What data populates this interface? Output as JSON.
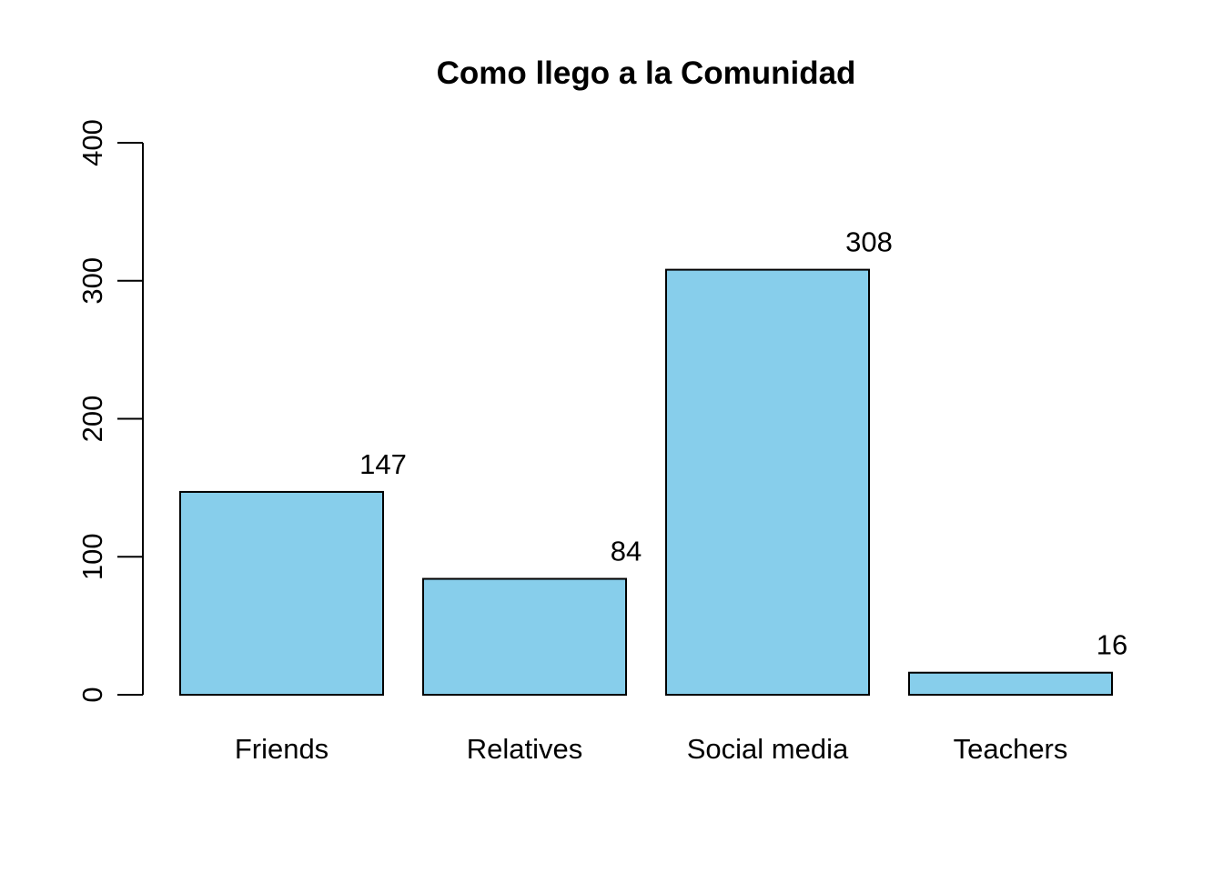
{
  "chart_data": {
    "type": "bar",
    "title": "Como llego a la Comunidad",
    "xlabel": "",
    "ylabel": "",
    "categories": [
      "Friends",
      "Relatives",
      "Social media",
      "Teachers"
    ],
    "values": [
      147,
      84,
      308,
      16
    ],
    "data_labels": [
      "147",
      "84",
      "308",
      "16"
    ],
    "ylim": [
      0,
      400
    ],
    "yticks": [
      0,
      100,
      200,
      300,
      400
    ],
    "grid": false,
    "bar_color": "#87CEEB",
    "border_color": "#000000"
  }
}
